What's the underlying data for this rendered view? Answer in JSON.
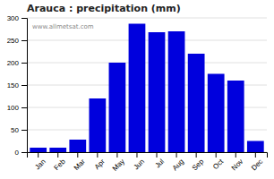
{
  "chart_data": {
    "type": "bar",
    "title": "Arauca : precipitation (mm)",
    "categories": [
      "Jan",
      "Feb",
      "Mar",
      "Apr",
      "May",
      "Jun",
      "Jul",
      "Aug",
      "Sep",
      "Oct",
      "Nov",
      "Dec"
    ],
    "values": [
      10,
      10,
      28,
      120,
      200,
      287,
      268,
      270,
      220,
      175,
      160,
      25
    ],
    "color": "#0000DD",
    "ylim": [
      0,
      300
    ],
    "yticks": [
      0,
      50,
      100,
      150,
      200,
      250,
      300
    ],
    "grid": true,
    "annotations": [
      "www.allmetsat.com"
    ]
  }
}
